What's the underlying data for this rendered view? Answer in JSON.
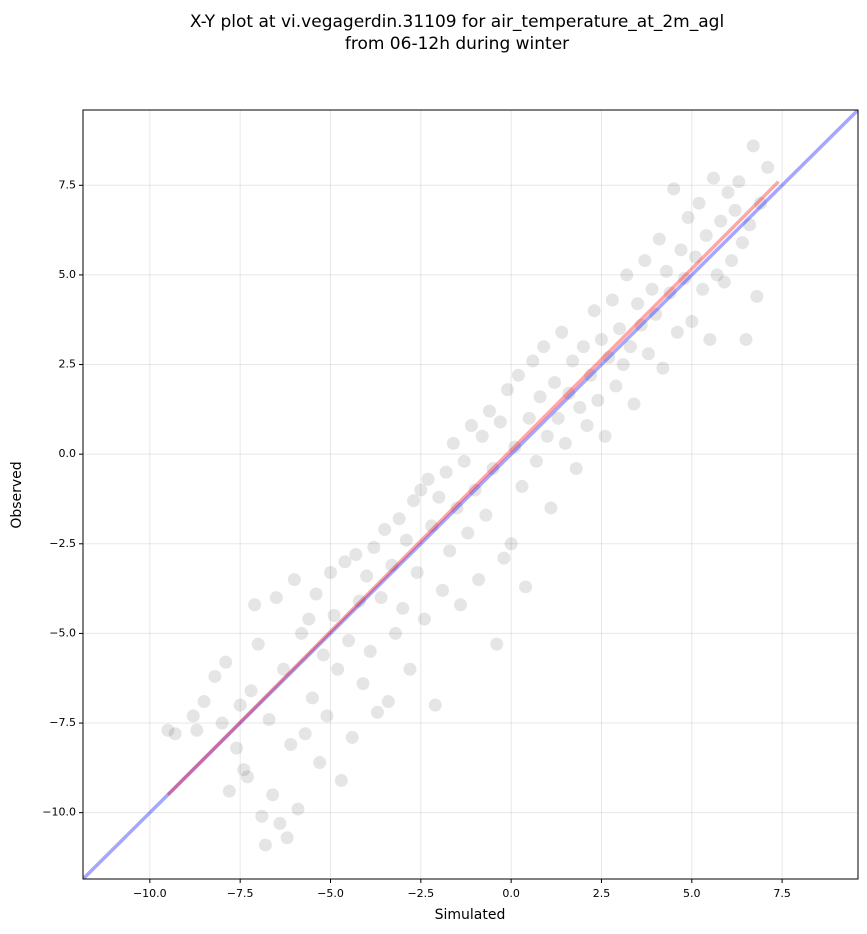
{
  "chart_data": {
    "type": "scatter",
    "title": [
      "X-Y plot at vi.vegagerdin.31109 for air_temperature_at_2m_agl",
      "from 06-12h during winter"
    ],
    "xlabel": "Simulated",
    "ylabel": "Observed",
    "xlim": [
      -11.85,
      9.6
    ],
    "ylim": [
      -11.85,
      9.6
    ],
    "xticks": [
      {
        "value": -10,
        "label": "−10.0"
      },
      {
        "value": -7.5,
        "label": "−7.5"
      },
      {
        "value": -5,
        "label": "−5.0"
      },
      {
        "value": -2.5,
        "label": "−2.5"
      },
      {
        "value": 0,
        "label": "0.0"
      },
      2.5,
      {
        "value": 5,
        "label": "5.0"
      },
      7.5
    ],
    "yticks": [
      {
        "value": -10,
        "label": "−10.0"
      },
      {
        "value": -7.5,
        "label": "−7.5"
      },
      {
        "value": -5,
        "label": "−5.0"
      },
      {
        "value": -2.5,
        "label": "−2.5"
      },
      {
        "value": 0,
        "label": "0.0"
      },
      2.5,
      {
        "value": 5,
        "label": "5.0"
      },
      7.5
    ],
    "grid": true,
    "series": [
      {
        "type": "scatter",
        "color": "#000000",
        "alpha": 0.1,
        "x": [
          -9.5,
          -9.3,
          -8.8,
          -8.7,
          -8.5,
          -8.2,
          -8.0,
          -7.9,
          -7.8,
          -7.6,
          -7.5,
          -7.4,
          -7.3,
          -7.2,
          -7.1,
          -7.0,
          -6.9,
          -6.8,
          -6.7,
          -6.6,
          -6.5,
          -6.4,
          -6.3,
          -6.2,
          -6.1,
          -6.0,
          -5.9,
          -5.8,
          -5.7,
          -5.6,
          -5.5,
          -5.4,
          -5.3,
          -5.2,
          -5.1,
          -5.0,
          -4.9,
          -4.8,
          -4.7,
          -4.6,
          -4.5,
          -4.4,
          -4.3,
          -4.2,
          -4.1,
          -4.0,
          -3.9,
          -3.8,
          -3.7,
          -3.6,
          -3.5,
          -3.4,
          -3.3,
          -3.2,
          -3.1,
          -3.0,
          -2.9,
          -2.8,
          -2.7,
          -2.6,
          -2.5,
          -2.4,
          -2.3,
          -2.2,
          -2.1,
          -2.0,
          -1.9,
          -1.8,
          -1.7,
          -1.6,
          -1.5,
          -1.4,
          -1.3,
          -1.2,
          -1.1,
          -1.0,
          -0.9,
          -0.8,
          -0.7,
          -0.6,
          -0.5,
          -0.4,
          -0.3,
          -0.2,
          -0.1,
          0.0,
          0.1,
          0.2,
          0.3,
          0.4,
          0.5,
          0.6,
          0.7,
          0.8,
          0.9,
          1.0,
          1.1,
          1.2,
          1.3,
          1.4,
          1.5,
          1.6,
          1.7,
          1.8,
          1.9,
          2.0,
          2.1,
          2.2,
          2.3,
          2.4,
          2.5,
          2.6,
          2.7,
          2.8,
          2.9,
          3.0,
          3.1,
          3.2,
          3.3,
          3.4,
          3.5,
          3.6,
          3.7,
          3.8,
          3.9,
          4.0,
          4.1,
          4.2,
          4.3,
          4.4,
          4.5,
          4.6,
          4.7,
          4.8,
          4.9,
          5.0,
          5.1,
          5.2,
          5.3,
          5.4,
          5.5,
          5.6,
          5.7,
          5.8,
          5.9,
          6.0,
          6.1,
          6.2,
          6.3,
          6.4,
          6.5,
          6.6,
          6.7,
          6.8,
          6.9,
          7.1
        ],
        "values": [
          -7.7,
          -7.8,
          -7.3,
          -7.7,
          -6.9,
          -6.2,
          -7.5,
          -5.8,
          -9.4,
          -8.2,
          -7.0,
          -8.8,
          -9.0,
          -6.6,
          -4.2,
          -5.3,
          -10.1,
          -10.9,
          -7.4,
          -9.5,
          -4.0,
          -10.3,
          -6.0,
          -10.7,
          -8.1,
          -3.5,
          -9.9,
          -5.0,
          -7.8,
          -4.6,
          -6.8,
          -3.9,
          -8.6,
          -5.6,
          -7.3,
          -3.3,
          -4.5,
          -6.0,
          -9.1,
          -3.0,
          -5.2,
          -7.9,
          -2.8,
          -4.1,
          -6.4,
          -3.4,
          -5.5,
          -2.6,
          -7.2,
          -4.0,
          -2.1,
          -6.9,
          -3.1,
          -5.0,
          -1.8,
          -4.3,
          -2.4,
          -6.0,
          -1.3,
          -3.3,
          -1.0,
          -4.6,
          -0.7,
          -2.0,
          -7.0,
          -1.2,
          -3.8,
          -0.5,
          -2.7,
          0.3,
          -1.5,
          -4.2,
          -0.2,
          -2.2,
          0.8,
          -1.0,
          -3.5,
          0.5,
          -1.7,
          1.2,
          -0.4,
          -5.3,
          0.9,
          -2.9,
          1.8,
          -2.5,
          0.2,
          2.2,
          -0.9,
          -3.7,
          1.0,
          2.6,
          -0.2,
          1.6,
          3.0,
          0.5,
          -1.5,
          2.0,
          1.0,
          3.4,
          0.3,
          1.7,
          2.6,
          -0.4,
          1.3,
          3.0,
          0.8,
          2.2,
          4.0,
          1.5,
          3.2,
          0.5,
          2.7,
          4.3,
          1.9,
          3.5,
          2.5,
          5.0,
          3.0,
          1.4,
          4.2,
          3.6,
          5.4,
          2.8,
          4.6,
          3.9,
          6.0,
          2.4,
          5.1,
          4.5,
          7.4,
          3.4,
          5.7,
          4.9,
          6.6,
          3.7,
          5.5,
          7.0,
          4.6,
          6.1,
          3.2,
          7.7,
          5.0,
          6.5,
          4.8,
          7.3,
          5.4,
          6.8,
          7.6,
          5.9,
          3.2,
          6.4,
          8.6,
          4.4,
          7.0,
          8.0
        ]
      },
      {
        "type": "line",
        "color": "#0000ff",
        "alpha": 0.35,
        "x": [
          -11.85,
          9.6
        ],
        "values": [
          -11.85,
          9.6
        ]
      },
      {
        "type": "line",
        "color": "#ff0000",
        "alpha": 0.35,
        "x": [
          -9.5,
          7.4
        ],
        "values": [
          -9.5,
          7.6
        ]
      }
    ]
  }
}
